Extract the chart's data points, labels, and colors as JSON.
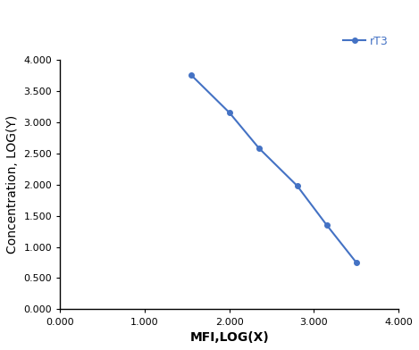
{
  "x": [
    1.55,
    2.0,
    2.35,
    2.8,
    3.15,
    3.5
  ],
  "y": [
    3.75,
    3.15,
    2.58,
    1.98,
    1.35,
    0.75
  ],
  "line_color": "#4472C4",
  "marker": "o",
  "marker_size": 4,
  "line_width": 1.5,
  "legend_label": "rT3",
  "xlabel": "MFI,LOG(X)",
  "ylabel": "Concentration, LOG(Y)",
  "xlim": [
    0.0,
    4.0
  ],
  "ylim": [
    0.0,
    4.0
  ],
  "xticks": [
    0.0,
    1.0,
    2.0,
    3.0,
    4.0
  ],
  "yticks": [
    0.0,
    0.5,
    1.0,
    1.5,
    2.0,
    2.5,
    3.0,
    3.5,
    4.0
  ],
  "xtick_labels": [
    "0.000",
    "1.000",
    "2.000",
    "3.000",
    "4.000"
  ],
  "ytick_labels": [
    "0.000",
    "0.500",
    "1.000",
    "1.500",
    "2.000",
    "2.500",
    "3.000",
    "3.500",
    "4.000"
  ],
  "background_color": "#ffffff",
  "tick_fontsize": 8,
  "label_fontsize": 10,
  "legend_fontsize": 9,
  "spine_color": "#000000",
  "tick_color": "#000000",
  "label_color": "#000000"
}
